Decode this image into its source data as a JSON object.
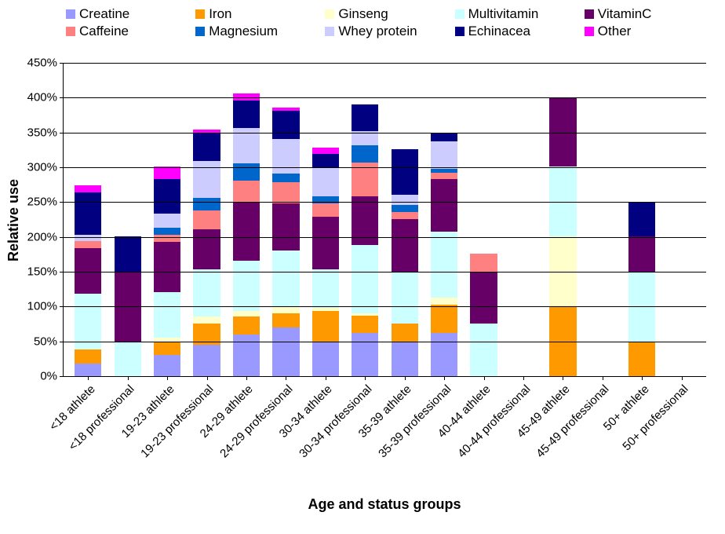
{
  "chart": {
    "type": "stacked-bar",
    "xlabel": "Age and status groups",
    "ylabel": "Relative use",
    "ylim": [
      0,
      450
    ],
    "ytick_step": 50,
    "ytick_suffix": "%",
    "background_color": "#ffffff",
    "grid_color": "#000000",
    "title_fontsize": 18,
    "label_fontsize": 18,
    "tick_fontsize": 15,
    "legend_fontsize": 17,
    "bar_width": 0.68,
    "series": [
      {
        "key": "creatine",
        "label": "Creatine",
        "color": "#9999ff"
      },
      {
        "key": "iron",
        "label": "Iron",
        "color": "#ff9900"
      },
      {
        "key": "ginseng",
        "label": "Ginseng",
        "color": "#ffffcc"
      },
      {
        "key": "multivitamin",
        "label": "Multivitamin",
        "color": "#ccffff"
      },
      {
        "key": "vitaminc",
        "label": "VitaminC",
        "color": "#660066"
      },
      {
        "key": "caffeine",
        "label": "Caffeine",
        "color": "#ff8080"
      },
      {
        "key": "magnesium",
        "label": "Magnesium",
        "color": "#0066cc"
      },
      {
        "key": "wheyprotein",
        "label": "Whey protein",
        "color": "#ccccff"
      },
      {
        "key": "echinacea",
        "label": "Echinacea",
        "color": "#000080"
      },
      {
        "key": "other",
        "label": "Other",
        "color": "#ff00ff"
      }
    ],
    "categories": [
      "<18 athlete",
      "<18 professional",
      "19-23 athlete",
      "19-23 professional",
      "24-29 athlete",
      "24-29 professional",
      "30-34 athlete",
      "30-34 professional",
      "35-39 athlete",
      "35-39 professional",
      "40-44 athlete",
      "40-44 professional",
      "45-49 athlete",
      "45-49 professional",
      "50+ athlete",
      "50+ professional"
    ],
    "data": [
      {
        "creatine": 18,
        "iron": 20,
        "ginseng": 0,
        "multivitamin": 80,
        "vitaminc": 65,
        "caffeine": 10,
        "magnesium": 0,
        "wheyprotein": 10,
        "echinacea": 60,
        "other": 10
      },
      {
        "creatine": 0,
        "iron": 0,
        "ginseng": 0,
        "multivitamin": 50,
        "vitaminc": 100,
        "caffeine": 0,
        "magnesium": 0,
        "wheyprotein": 0,
        "echinacea": 50,
        "other": 0
      },
      {
        "creatine": 30,
        "iron": 20,
        "ginseng": 5,
        "multivitamin": 65,
        "vitaminc": 73,
        "caffeine": 10,
        "magnesium": 10,
        "wheyprotein": 20,
        "echinacea": 50,
        "other": 17
      },
      {
        "creatine": 45,
        "iron": 30,
        "ginseng": 10,
        "multivitamin": 68,
        "vitaminc": 57,
        "caffeine": 28,
        "magnesium": 18,
        "wheyprotein": 52,
        "echinacea": 40,
        "other": 5
      },
      {
        "creatine": 60,
        "iron": 25,
        "ginseng": 8,
        "multivitamin": 72,
        "vitaminc": 85,
        "caffeine": 30,
        "magnesium": 25,
        "wheyprotein": 50,
        "echinacea": 40,
        "other": 10
      },
      {
        "creatine": 70,
        "iron": 20,
        "ginseng": 10,
        "multivitamin": 80,
        "vitaminc": 68,
        "caffeine": 30,
        "magnesium": 12,
        "wheyprotein": 50,
        "echinacea": 40,
        "other": 5
      },
      {
        "creatine": 48,
        "iron": 45,
        "ginseng": 5,
        "multivitamin": 55,
        "vitaminc": 75,
        "caffeine": 20,
        "magnesium": 10,
        "wheyprotein": 40,
        "echinacea": 20,
        "other": 10
      },
      {
        "creatine": 62,
        "iron": 25,
        "ginseng": 3,
        "multivitamin": 98,
        "vitaminc": 70,
        "caffeine": 48,
        "magnesium": 25,
        "wheyprotein": 20,
        "echinacea": 38,
        "other": 0
      },
      {
        "creatine": 50,
        "iron": 25,
        "ginseng": 0,
        "multivitamin": 75,
        "vitaminc": 75,
        "caffeine": 10,
        "magnesium": 10,
        "wheyprotein": 15,
        "echinacea": 65,
        "other": 0
      },
      {
        "creatine": 62,
        "iron": 40,
        "ginseng": 10,
        "multivitamin": 95,
        "vitaminc": 75,
        "caffeine": 10,
        "magnesium": 5,
        "wheyprotein": 40,
        "echinacea": 12,
        "other": 0
      },
      {
        "creatine": 0,
        "iron": 0,
        "ginseng": 0,
        "multivitamin": 75,
        "vitaminc": 75,
        "caffeine": 25,
        "magnesium": 0,
        "wheyprotein": 0,
        "echinacea": 0,
        "other": 0
      },
      {
        "creatine": 0,
        "iron": 0,
        "ginseng": 0,
        "multivitamin": 0,
        "vitaminc": 0,
        "caffeine": 0,
        "magnesium": 0,
        "wheyprotein": 0,
        "echinacea": 0,
        "other": 0
      },
      {
        "creatine": 0,
        "iron": 100,
        "ginseng": 100,
        "multivitamin": 100,
        "vitaminc": 100,
        "caffeine": 0,
        "magnesium": 0,
        "wheyprotein": 0,
        "echinacea": 0,
        "other": 0
      },
      {
        "creatine": 0,
        "iron": 0,
        "ginseng": 0,
        "multivitamin": 0,
        "vitaminc": 0,
        "caffeine": 0,
        "magnesium": 0,
        "wheyprotein": 0,
        "echinacea": 0,
        "other": 0
      },
      {
        "creatine": 0,
        "iron": 50,
        "ginseng": 0,
        "multivitamin": 100,
        "vitaminc": 50,
        "caffeine": 0,
        "magnesium": 0,
        "wheyprotein": 0,
        "echinacea": 50,
        "other": 0
      },
      {
        "creatine": 0,
        "iron": 0,
        "ginseng": 0,
        "multivitamin": 0,
        "vitaminc": 0,
        "caffeine": 0,
        "magnesium": 0,
        "wheyprotein": 0,
        "echinacea": 0,
        "other": 0
      }
    ]
  }
}
